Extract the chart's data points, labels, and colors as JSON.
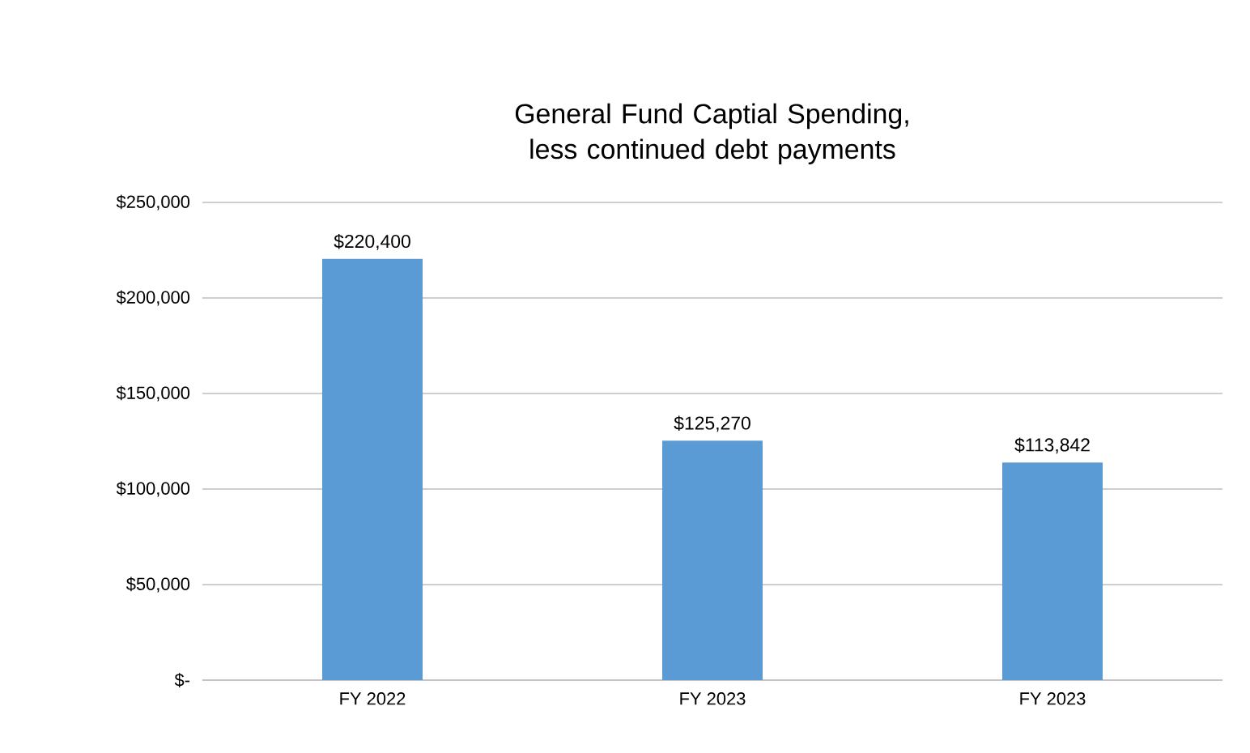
{
  "chart_data": {
    "type": "bar",
    "title": "General Fund Captial Spending, less continued debt payments",
    "categories": [
      "FY 2022",
      "FY 2023",
      "FY 2023"
    ],
    "values": [
      220400,
      125270,
      113842
    ],
    "value_labels": [
      "$220,400",
      "$125,270",
      "$113,842"
    ],
    "color": "#5b9bd5",
    "ylim": [
      0,
      250000
    ],
    "yticks": [
      {
        "value": 0,
        "label": "$-"
      },
      {
        "value": 50000,
        "label": "$50,000"
      },
      {
        "value": 100000,
        "label": "$100,000"
      },
      {
        "value": 150000,
        "label": "$150,000"
      },
      {
        "value": 200000,
        "label": "$200,000"
      },
      {
        "value": 250000,
        "label": "$250,000"
      }
    ],
    "grid": "y"
  }
}
